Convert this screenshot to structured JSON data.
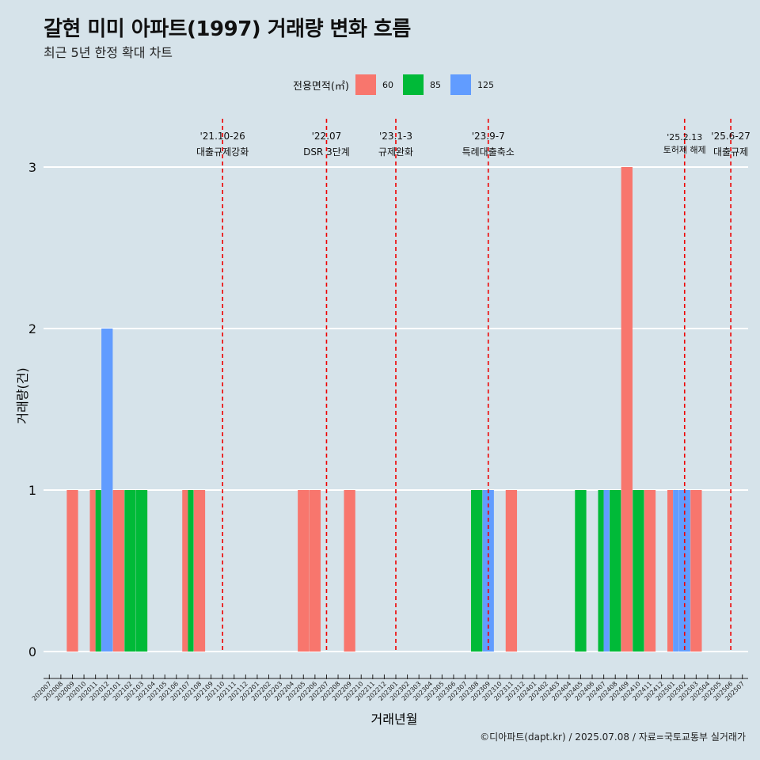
{
  "title": "갈현 미미 아파트(1997) 거래량 변화 흐름",
  "subtitle": "최근 5년 한정 확대 차트",
  "legend": {
    "title": "전용면적(㎡)",
    "items": [
      {
        "label": "60",
        "color": "#f8766d"
      },
      {
        "label": "85",
        "color": "#00ba38"
      },
      {
        "label": "125",
        "color": "#619cff"
      }
    ]
  },
  "caption": "©디아파트(dapt.kr) / 2025.07.08 / 자료=국토교통부 실거래가",
  "chart_data": {
    "type": "bar",
    "xlabel": "거래년월",
    "ylabel": "거래량(건)",
    "ylim": [
      0,
      3
    ],
    "yticks": [
      0,
      1,
      2,
      3
    ],
    "categories": [
      "202007",
      "202008",
      "202009",
      "202010",
      "202011",
      "202012",
      "202101",
      "202102",
      "202103",
      "202104",
      "202105",
      "202106",
      "202107",
      "202108",
      "202109",
      "202110",
      "202111",
      "202112",
      "202201",
      "202202",
      "202203",
      "202204",
      "202205",
      "202206",
      "202207",
      "202208",
      "202209",
      "202210",
      "202211",
      "202212",
      "202301",
      "202302",
      "202303",
      "202304",
      "202305",
      "202306",
      "202307",
      "202308",
      "202309",
      "202310",
      "202311",
      "202312",
      "202401",
      "202402",
      "202403",
      "202404",
      "202405",
      "202406",
      "202407",
      "202408",
      "202409",
      "202410",
      "202411",
      "202412",
      "202501",
      "202502",
      "202503",
      "202504",
      "202505",
      "202506",
      "202507"
    ],
    "series": [
      {
        "name": "60",
        "color": "#f8766d",
        "points": [
          {
            "x": "202009",
            "y": 1
          },
          {
            "x": "202011",
            "y": 1
          },
          {
            "x": "202101",
            "y": 1
          },
          {
            "x": "202107",
            "y": 1
          },
          {
            "x": "202108",
            "y": 1
          },
          {
            "x": "202205",
            "y": 1
          },
          {
            "x": "202206",
            "y": 1
          },
          {
            "x": "202209",
            "y": 1
          },
          {
            "x": "202311",
            "y": 1
          },
          {
            "x": "202409",
            "y": 3
          },
          {
            "x": "202411",
            "y": 1
          },
          {
            "x": "202501",
            "y": 1
          },
          {
            "x": "202503",
            "y": 1
          }
        ]
      },
      {
        "name": "85",
        "color": "#00ba38",
        "points": [
          {
            "x": "202011",
            "y": 1
          },
          {
            "x": "202102",
            "y": 1
          },
          {
            "x": "202103",
            "y": 1
          },
          {
            "x": "202107",
            "y": 1
          },
          {
            "x": "202308",
            "y": 1
          },
          {
            "x": "202405",
            "y": 1
          },
          {
            "x": "202407",
            "y": 1
          },
          {
            "x": "202408",
            "y": 1
          },
          {
            "x": "202410",
            "y": 1
          }
        ]
      },
      {
        "name": "125",
        "color": "#619cff",
        "points": [
          {
            "x": "202012",
            "y": 2
          },
          {
            "x": "202309",
            "y": 1
          },
          {
            "x": "202407",
            "y": 1
          },
          {
            "x": "202501",
            "y": 1
          },
          {
            "x": "202502",
            "y": 1
          }
        ]
      }
    ],
    "events": [
      {
        "x": "202110",
        "date": "'21.10-26",
        "label": "대출규제강화"
      },
      {
        "x": "202207",
        "date": "'22.07",
        "label": "DSR 3단계"
      },
      {
        "x": "202301",
        "date": "'23.1-3",
        "label": "규제완화"
      },
      {
        "x": "202309",
        "date": "'23.9-7",
        "label": "특례대출축소"
      },
      {
        "x": "202502",
        "date": "'25.2.13",
        "label": "토허제 해제"
      },
      {
        "x": "202506",
        "date": "'25.6-27",
        "label": "대출규제"
      }
    ],
    "grid": true,
    "legend_position": "top"
  }
}
